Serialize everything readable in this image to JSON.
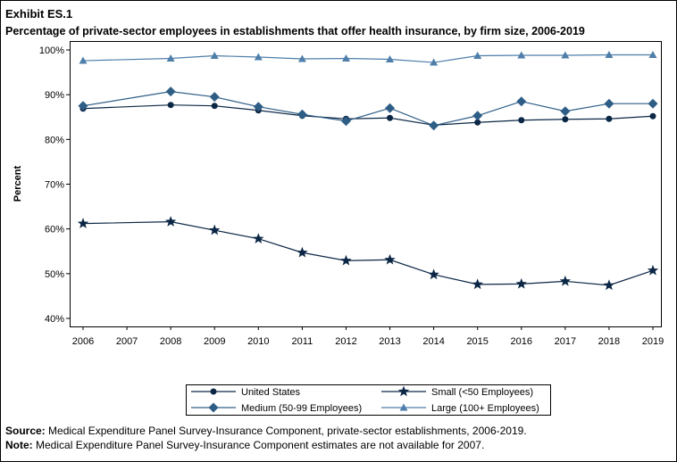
{
  "exhibit_label": "Exhibit ES.1",
  "chart_data": {
    "type": "line",
    "title": "Percentage of private-sector employees in establishments that offer health insurance, by firm size, 2006-2019",
    "ylabel": "Percent",
    "xlabel": "",
    "categories": [
      "2006",
      "2007",
      "2008",
      "2009",
      "2010",
      "2011",
      "2012",
      "2013",
      "2014",
      "2015",
      "2016",
      "2017",
      "2018",
      "2019"
    ],
    "yticks": [
      "40%",
      "50%",
      "60%",
      "70%",
      "80%",
      "90%",
      "100%"
    ],
    "ylim": [
      40,
      100
    ],
    "grid": false,
    "legend_position": "bottom",
    "series": [
      {
        "name": "United States",
        "marker": "circle",
        "color": "#0b2745",
        "values": [
          86.9,
          null,
          87.7,
          87.5,
          86.5,
          85.3,
          84.6,
          84.8,
          83.2,
          83.8,
          84.3,
          84.5,
          84.6,
          85.2
        ]
      },
      {
        "name": "Small (<50 Employees)",
        "marker": "star",
        "color": "#0b2745",
        "values": [
          61.2,
          null,
          61.6,
          59.7,
          57.8,
          54.7,
          52.9,
          53.1,
          49.8,
          47.6,
          47.7,
          48.3,
          47.4,
          50.7
        ]
      },
      {
        "name": "Medium (50-99 Employees)",
        "marker": "diamond",
        "color": "#2e5d86",
        "values": [
          87.5,
          null,
          90.7,
          89.5,
          87.3,
          85.6,
          84.1,
          87.0,
          83.1,
          85.3,
          88.5,
          86.3,
          88.0,
          88.0
        ]
      },
      {
        "name": "Large (100+ Employees)",
        "marker": "triangle",
        "color": "#4e7ea9",
        "values": [
          97.6,
          null,
          98.1,
          98.7,
          98.4,
          98.0,
          98.1,
          97.9,
          97.2,
          98.7,
          98.8,
          98.8,
          98.9,
          98.9
        ]
      }
    ]
  },
  "footnotes": {
    "source_label": "Source:",
    "source_text": " Medical Expenditure Panel Survey-Insurance Component, private-sector establishments, 2006-2019.",
    "note_label": "Note:",
    "note_text": " Medical Expenditure Panel Survey-Insurance Component estimates are not available for 2007."
  }
}
